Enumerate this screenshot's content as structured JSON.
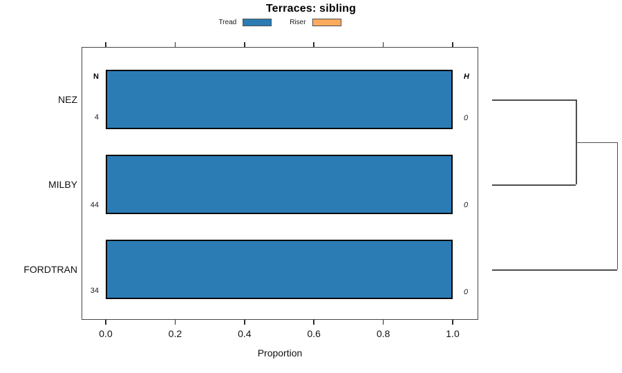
{
  "title": "Terraces: sibling",
  "legend": {
    "items": [
      {
        "label": "Tread",
        "color": "#2b7cb5"
      },
      {
        "label": "Riser",
        "color": "#fbab60"
      }
    ]
  },
  "left_column_header": "N",
  "right_column_header": "H",
  "rows": [
    {
      "label": "NEZ",
      "n": "4",
      "h": "0"
    },
    {
      "label": "MILBY",
      "n": "44",
      "h": "0"
    },
    {
      "label": "FORDTRAN",
      "n": "34",
      "h": "0"
    }
  ],
  "axis": {
    "label": "Proportion",
    "tick_labels": [
      "0.0",
      "0.2",
      "0.4",
      "0.6",
      "0.8",
      "1.0"
    ]
  },
  "chart_data": {
    "type": "bar",
    "orientation": "horizontal",
    "stacked": true,
    "title": "Terraces: sibling",
    "xlabel": "Proportion",
    "xlim": [
      0,
      1
    ],
    "x_ticks": [
      0,
      0.2,
      0.4,
      0.6,
      0.8,
      1
    ],
    "grid": false,
    "legend_position": "top",
    "categories": [
      "NEZ",
      "MILBY",
      "FORDTRAN"
    ],
    "sample_sizes": [
      4,
      44,
      34
    ],
    "h_values": [
      0,
      0,
      0
    ],
    "series": [
      {
        "name": "Tread",
        "color": "#2b7cb5",
        "values": [
          1,
          1,
          1
        ]
      },
      {
        "name": "Riser",
        "color": "#fbab60",
        "values": [
          0,
          0,
          0
        ]
      }
    ],
    "dendrogram": {
      "leaves": [
        "NEZ",
        "MILBY",
        "FORDTRAN"
      ],
      "merges": [
        {
          "children": [
            "NEZ",
            "MILBY"
          ],
          "x": 833
        },
        {
          "children": [
            "node0",
            "FORDTRAN"
          ],
          "x": 892.5
        }
      ]
    }
  }
}
